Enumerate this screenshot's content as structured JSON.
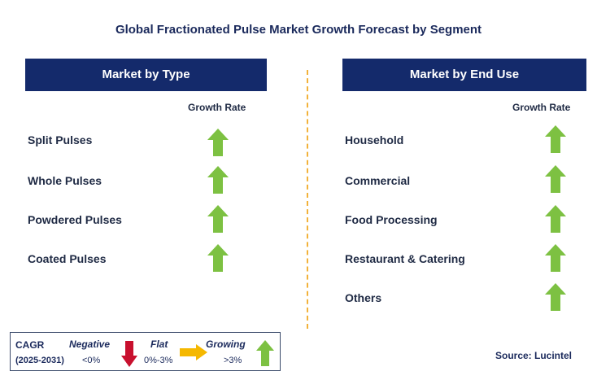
{
  "title": "Global Fractionated Pulse Market Growth Forecast by Segment",
  "left_panel": {
    "header": "Market by Type",
    "growth_label": "Growth Rate",
    "rows": [
      {
        "label": "Split Pulses",
        "trend": "growing"
      },
      {
        "label": "Whole Pulses",
        "trend": "growing"
      },
      {
        "label": "Powdered Pulses",
        "trend": "growing"
      },
      {
        "label": "Coated Pulses",
        "trend": "growing"
      }
    ]
  },
  "right_panel": {
    "header": "Market by End Use",
    "growth_label": "Growth Rate",
    "rows": [
      {
        "label": "Household",
        "trend": "growing"
      },
      {
        "label": "Commercial",
        "trend": "growing"
      },
      {
        "label": "Food Processing",
        "trend": "growing"
      },
      {
        "label": "Restaurant & Catering",
        "trend": "growing"
      },
      {
        "label": "Others",
        "trend": "growing"
      }
    ]
  },
  "legend": {
    "cagr_label": "CAGR",
    "period": "(2025-2031)",
    "negative": {
      "label": "Negative",
      "range": "<0%",
      "icon": "red-down-arrow"
    },
    "flat": {
      "label": "Flat",
      "range": "0%-3%",
      "icon": "orange-right-arrow"
    },
    "growing": {
      "label": "Growing",
      "range": ">3%",
      "icon": "green-up-arrow"
    }
  },
  "source": "Source: Lucintel",
  "colors": {
    "header_bg": "#142a6b",
    "growing": "#7dc142",
    "negative": "#c8102e",
    "flat": "#f5b800",
    "divider": "#f2b23a"
  }
}
